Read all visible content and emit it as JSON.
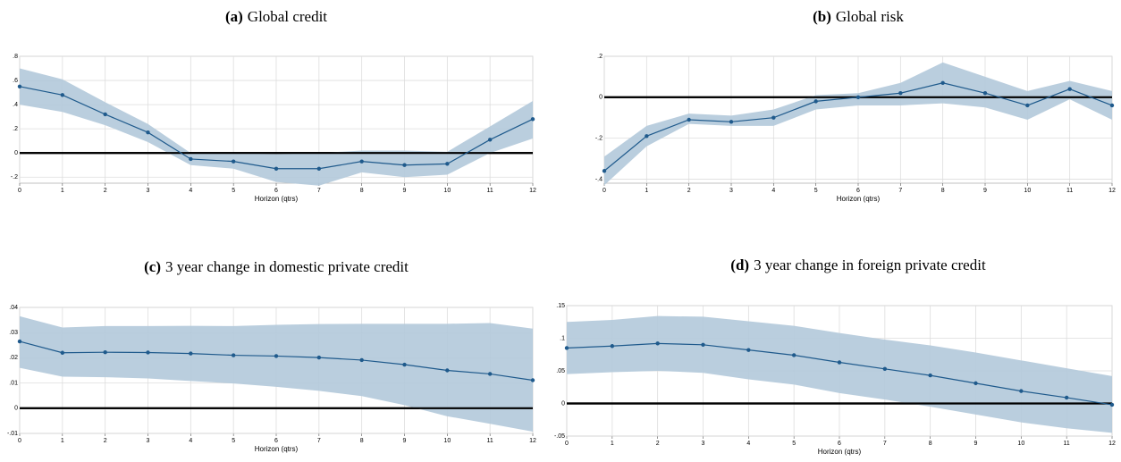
{
  "chart_data": [
    {
      "type": "line",
      "label": "(a)",
      "title": "Global credit",
      "x_label": "Horizon (qtrs)",
      "x": [
        0,
        1,
        2,
        3,
        4,
        5,
        6,
        7,
        8,
        9,
        10,
        11,
        12
      ],
      "values": [
        0.55,
        0.48,
        0.32,
        0.17,
        -0.05,
        -0.07,
        -0.13,
        -0.13,
        -0.07,
        -0.1,
        -0.09,
        0.11,
        0.28
      ],
      "upper": [
        0.7,
        0.61,
        0.42,
        0.24,
        0,
        0,
        -0.01,
        0,
        0.02,
        0.02,
        0.01,
        0.22,
        0.43
      ],
      "lower": [
        0.4,
        0.34,
        0.23,
        0.09,
        -0.1,
        -0.13,
        -0.24,
        -0.27,
        -0.16,
        -0.2,
        -0.18,
        0,
        0.12
      ],
      "color": "#1f5a8c",
      "band_color": "#b3c9da",
      "xlim": [
        0,
        12
      ],
      "xticks": [
        0,
        1,
        2,
        3,
        4,
        5,
        6,
        7,
        8,
        9,
        10,
        11,
        12
      ],
      "ylim": [
        -0.25,
        0.8
      ],
      "yticks": [
        {
          "value": -0.2,
          "label": "-.2"
        },
        0,
        {
          "value": 0.2,
          "label": ".2"
        },
        {
          "value": 0.4,
          "label": ".4"
        },
        {
          "value": 0.6,
          "label": ".6"
        },
        {
          "value": 0.8,
          "label": ".8"
        }
      ],
      "grid": true
    },
    {
      "type": "line",
      "label": "(b)",
      "title": "Global risk",
      "x_label": "Horizon (qtrs)",
      "x": [
        0,
        1,
        2,
        3,
        4,
        5,
        6,
        7,
        8,
        9,
        10,
        11,
        12
      ],
      "values": [
        -0.36,
        -0.19,
        -0.11,
        -0.12,
        -0.1,
        -0.02,
        0,
        0.02,
        0.07,
        0.02,
        -0.04,
        0.04,
        -0.04
      ],
      "upper": [
        -0.29,
        -0.14,
        -0.08,
        -0.09,
        -0.06,
        0.01,
        0.02,
        0.07,
        0.17,
        0.1,
        0.03,
        0.08,
        0.03
      ],
      "lower": [
        -0.43,
        -0.24,
        -0.13,
        -0.14,
        -0.14,
        -0.06,
        -0.04,
        -0.04,
        -0.03,
        -0.05,
        -0.11,
        -0.01,
        -0.11
      ],
      "color": "#1f5a8c",
      "band_color": "#b3c9da",
      "xlim": [
        0,
        12
      ],
      "xticks": [
        0,
        1,
        2,
        3,
        4,
        5,
        6,
        7,
        8,
        9,
        10,
        11,
        12
      ],
      "ylim": [
        -0.42,
        0.2
      ],
      "yticks": [
        {
          "value": -0.4,
          "label": "-.4"
        },
        {
          "value": -0.2,
          "label": "-.2"
        },
        0,
        {
          "value": 0.2,
          "label": ".2"
        }
      ],
      "grid": true
    },
    {
      "type": "line",
      "label": "(c)",
      "title": "3 year change in domestic private credit",
      "x_label": "Horizon (qtrs)",
      "x": [
        0,
        1,
        2,
        3,
        4,
        5,
        6,
        7,
        8,
        9,
        10,
        11,
        12
      ],
      "values": [
        0.0265,
        0.022,
        0.0222,
        0.0221,
        0.0217,
        0.021,
        0.0207,
        0.0201,
        0.0191,
        0.0173,
        0.015,
        0.0136,
        0.0111
      ],
      "upper": [
        0.0365,
        0.032,
        0.0326,
        0.0326,
        0.0327,
        0.0326,
        0.0331,
        0.0334,
        0.0335,
        0.0335,
        0.0335,
        0.0338,
        0.0316
      ],
      "lower": [
        0.016,
        0.0125,
        0.0123,
        0.0118,
        0.0108,
        0.0098,
        0.0085,
        0.0069,
        0.0048,
        0.0012,
        -0.0032,
        -0.0062,
        -0.0093
      ],
      "color": "#1f5a8c",
      "band_color": "#b3c9da",
      "xlim": [
        0,
        12
      ],
      "xticks": [
        0,
        1,
        2,
        3,
        4,
        5,
        6,
        7,
        8,
        9,
        10,
        11,
        12
      ],
      "ylim": [
        -0.01,
        0.04
      ],
      "yticks": [
        {
          "value": -0.01,
          "label": "-.01"
        },
        0,
        {
          "value": 0.01,
          "label": ".01"
        },
        {
          "value": 0.02,
          "label": ".02"
        },
        {
          "value": 0.03,
          "label": ".03"
        },
        {
          "value": 0.04,
          "label": ".04"
        }
      ],
      "grid": true
    },
    {
      "type": "line",
      "label": "(d)",
      "title": "3 year change in foreign private credit",
      "x_label": "Horizon (qtrs)",
      "x": [
        0,
        1,
        2,
        3,
        4,
        5,
        6,
        7,
        8,
        9,
        10,
        11,
        12
      ],
      "values": [
        0.085,
        0.088,
        0.092,
        0.09,
        0.082,
        0.074,
        0.063,
        0.053,
        0.043,
        0.031,
        0.019,
        0.009,
        -0.002
      ],
      "upper": [
        0.125,
        0.128,
        0.134,
        0.133,
        0.126,
        0.119,
        0.108,
        0.098,
        0.089,
        0.078,
        0.066,
        0.054,
        0.042
      ],
      "lower": [
        0.045,
        0.048,
        0.05,
        0.047,
        0.037,
        0.029,
        0.016,
        0.006,
        -0.005,
        -0.017,
        -0.029,
        -0.038,
        -0.045
      ],
      "color": "#1f5a8c",
      "band_color": "#b3c9da",
      "xlim": [
        0,
        12
      ],
      "xticks": [
        0,
        1,
        2,
        3,
        4,
        5,
        6,
        7,
        8,
        9,
        10,
        11,
        12
      ],
      "ylim": [
        -0.05,
        0.15
      ],
      "yticks": [
        {
          "value": -0.05,
          "label": "-.05"
        },
        0,
        {
          "value": 0.05,
          "label": ".05"
        },
        {
          "value": 0.1,
          "label": ".1"
        },
        {
          "value": 0.15,
          "label": ".15"
        }
      ],
      "grid": true
    }
  ]
}
